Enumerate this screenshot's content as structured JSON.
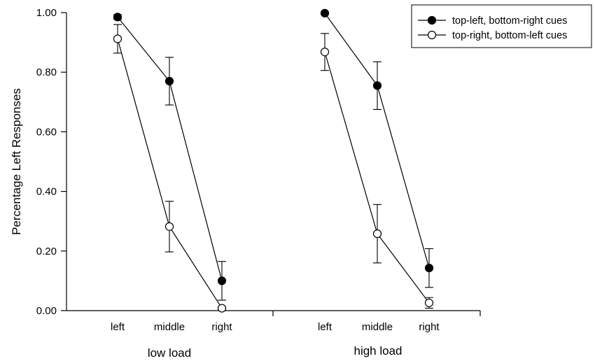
{
  "chart_data": {
    "type": "line",
    "ylabel": "Percentage Left Responses",
    "ylim": [
      0,
      1
    ],
    "yticks": [
      "0.00",
      "0.20",
      "0.40",
      "0.60",
      "0.80",
      "1.00"
    ],
    "groups": [
      {
        "label": "low load",
        "categories": [
          "left",
          "middle",
          "right"
        ]
      },
      {
        "label": "high load",
        "categories": [
          "left",
          "middle",
          "right"
        ]
      }
    ],
    "legend_position": "top-right",
    "series": [
      {
        "name": "top-left, bottom-right cues",
        "marker": "filled",
        "color": "#000000",
        "groups": [
          {
            "values": [
              0.985,
              0.77,
              0.1
            ],
            "errors": [
              0.008,
              0.08,
              0.065
            ]
          },
          {
            "values": [
              0.998,
              0.755,
              0.143
            ],
            "errors": [
              0.003,
              0.08,
              0.065
            ]
          }
        ]
      },
      {
        "name": "top-right, bottom-left cues",
        "marker": "open",
        "color": "#000000",
        "groups": [
          {
            "values": [
              0.912,
              0.282,
              0.008
            ],
            "errors": [
              0.048,
              0.085,
              0.004
            ]
          },
          {
            "values": [
              0.868,
              0.258,
              0.026
            ],
            "errors": [
              0.062,
              0.098,
              0.018
            ]
          }
        ]
      }
    ]
  }
}
